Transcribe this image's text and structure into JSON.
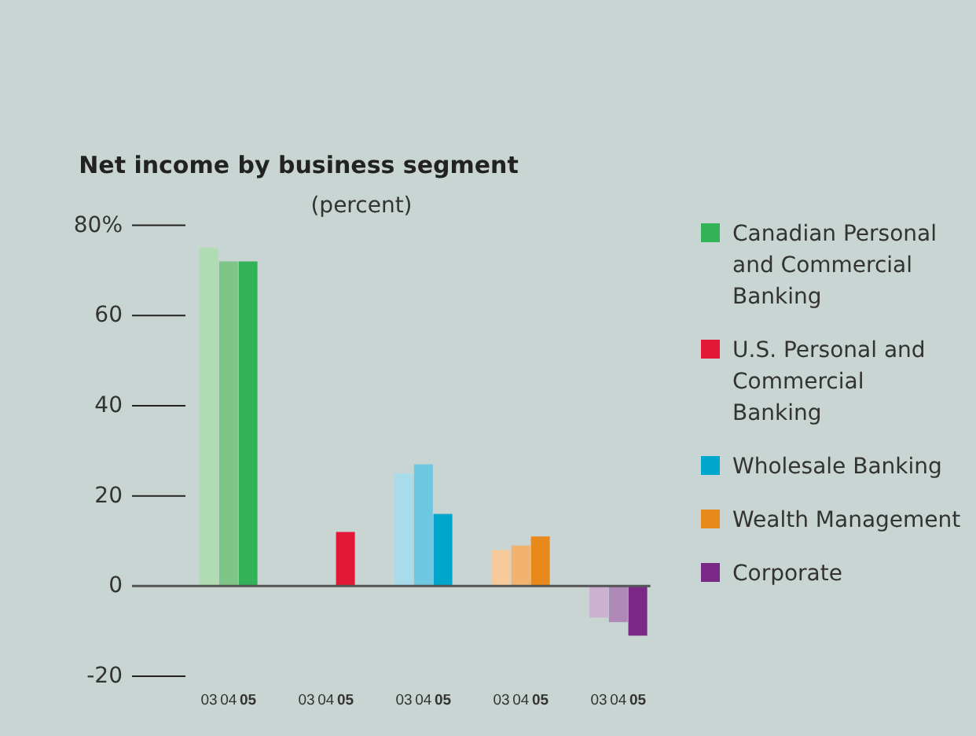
{
  "chart_data": {
    "type": "bar",
    "title": "Net income by business segment",
    "subtitle": "(percent)",
    "categories": [
      "03",
      "04",
      "05",
      null,
      null,
      "03",
      "04",
      "05",
      null,
      null,
      "03",
      "04",
      "05",
      null,
      null,
      "03",
      "04",
      "05",
      null,
      null,
      "03",
      "04",
      "05"
    ],
    "ylim": [
      -20,
      80
    ],
    "yticks": [
      -20,
      0,
      20,
      40,
      60,
      {
        "value": 80,
        "label": "80%"
      }
    ],
    "grid": "y",
    "legend": "right",
    "series": [
      {
        "name": "Canadian Personal and Commercial Banking",
        "color": "#33b357",
        "colors": [
          "#b1dbb3",
          "#7ec688",
          "#33b357",
          null,
          null,
          null,
          null,
          null,
          null,
          null,
          null,
          null,
          null,
          null,
          null,
          null,
          null,
          null,
          null,
          null,
          null,
          null,
          null
        ],
        "values": [
          75,
          72,
          72,
          null,
          null,
          null,
          null,
          null,
          null,
          null,
          null,
          null,
          null,
          null,
          null,
          null,
          null,
          null,
          null,
          null,
          null,
          null,
          null
        ]
      },
      {
        "name": "U.S. Personal and Commercial Banking",
        "color": "#e31837",
        "colors": [
          null,
          null,
          null,
          null,
          null,
          null,
          null,
          "#e31837",
          null,
          null,
          null,
          null,
          null,
          null,
          null,
          null,
          null,
          null,
          null,
          null,
          null,
          null,
          null
        ],
        "values": [
          null,
          null,
          null,
          null,
          null,
          null,
          null,
          12,
          null,
          null,
          null,
          null,
          null,
          null,
          null,
          null,
          null,
          null,
          null,
          null,
          null,
          null,
          null
        ]
      },
      {
        "name": "Wholesale Banking",
        "color": "#00a6cc",
        "colors": [
          null,
          null,
          null,
          null,
          null,
          null,
          null,
          null,
          null,
          null,
          "#a8dcea",
          "#6ec8e2",
          "#00a6cc",
          null,
          null,
          null,
          null,
          null,
          null,
          null,
          null,
          null,
          null
        ],
        "values": [
          null,
          null,
          null,
          null,
          null,
          null,
          null,
          null,
          null,
          null,
          25,
          27,
          16,
          null,
          null,
          null,
          null,
          null,
          null,
          null,
          null,
          null,
          null
        ]
      },
      {
        "name": "Wealth Management",
        "color": "#e8891c",
        "colors": [
          null,
          null,
          null,
          null,
          null,
          null,
          null,
          null,
          null,
          null,
          null,
          null,
          null,
          null,
          null,
          "#f6ca9a",
          "#f2b36f",
          "#e8891c",
          null,
          null,
          null,
          null,
          null
        ],
        "values": [
          null,
          null,
          null,
          null,
          null,
          null,
          null,
          null,
          null,
          null,
          null,
          null,
          null,
          null,
          null,
          8,
          9,
          11,
          null,
          null,
          null,
          null,
          null
        ]
      },
      {
        "name": "Corporate",
        "color": "#7a2a86",
        "colors": [
          null,
          null,
          null,
          null,
          null,
          null,
          null,
          null,
          null,
          null,
          null,
          null,
          null,
          null,
          null,
          null,
          null,
          null,
          null,
          null,
          "#cdb1d0",
          "#b189b8",
          "#7a2a86"
        ],
        "values": [
          null,
          null,
          null,
          null,
          null,
          null,
          null,
          null,
          null,
          null,
          null,
          null,
          null,
          null,
          null,
          null,
          null,
          null,
          null,
          null,
          -7,
          -8,
          -11
        ]
      }
    ]
  }
}
